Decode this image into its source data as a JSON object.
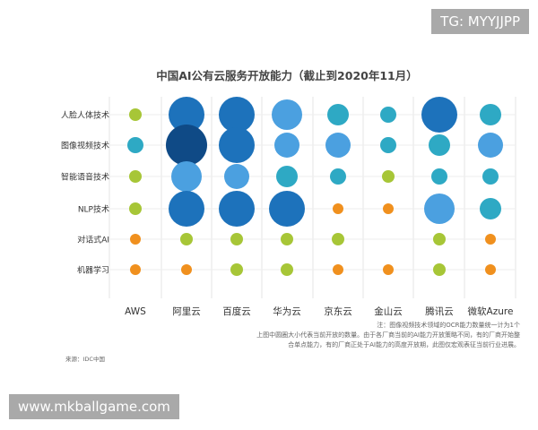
{
  "watermarks": {
    "top": "TG: MYYJJPP",
    "bottom": "www.mkballgame.com"
  },
  "chart_data": {
    "type": "bubble",
    "title": "中国AI公有云服务开放能力（截止到2020年11月）",
    "categories_x": [
      "AWS",
      "阿里云",
      "百度云",
      "华为云",
      "京东云",
      "金山云",
      "腾讯云",
      "微软Azure"
    ],
    "categories_y": [
      "人脸人体技术",
      "图像视频技术",
      "智能语音技术",
      "NLP技术",
      "对话式AI",
      "机器学习"
    ],
    "size_levels_note": "relative bubble size level 1-8",
    "values": [
      [
        2,
        7,
        7,
        6,
        4,
        3,
        7,
        4
      ],
      [
        3,
        8,
        7,
        5,
        5,
        3,
        4,
        5
      ],
      [
        2,
        6,
        5,
        4,
        3,
        2,
        3,
        3
      ],
      [
        2,
        7,
        7,
        7,
        1,
        1,
        6,
        4
      ],
      [
        1,
        2,
        2,
        2,
        2,
        0,
        2,
        1
      ],
      [
        1,
        1,
        2,
        2,
        1,
        1,
        2,
        1
      ]
    ],
    "level_colors": {
      "1": "#f0901e",
      "2": "#a7c637",
      "3": "#2ea9c4",
      "4": "#2ea9c4",
      "5": "#4ba0e0",
      "6": "#4ba0e0",
      "7": "#1d72bb",
      "8": "#0f4a86"
    },
    "notes": [
      "注：图像视频技术领域的OCR能力数量统一计为1个",
      "上图中圆圈大小代表当前开放的数量。由于各厂商当前的AI能力开放策略不同，有的厂商开始整",
      "合单点能力，有的厂商正处于AI能力的高度开放期，此图仅宏观表征当前行业进展。"
    ],
    "source": "来源：IDC中国"
  }
}
